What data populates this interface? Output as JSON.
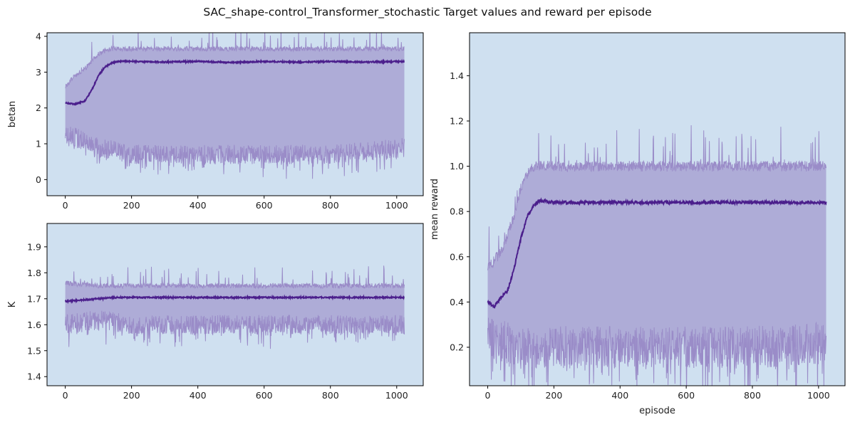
{
  "figure": {
    "title": "SAC_shape-control_Transformer_stochastic Target values and reward per episode",
    "background_color": "#cfe0f0",
    "band_color": "#a8a2d2",
    "raw_color": "#9a8cc8",
    "line_color": "#4b1f8c"
  },
  "chart_data": [
    {
      "type": "line",
      "id": "betan",
      "ylabel": "betan",
      "xlabel": "",
      "xlim": [
        -55,
        1080
      ],
      "ylim": [
        -0.45,
        4.1
      ],
      "xticks": [
        0,
        200,
        400,
        600,
        800,
        1000
      ],
      "yticks": [
        0,
        1,
        2,
        3,
        4
      ],
      "grid": false,
      "episodes": 1024,
      "series": [
        {
          "role": "mean",
          "x": [
            0,
            30,
            60,
            80,
            100,
            120,
            140,
            160,
            200,
            300,
            400,
            500,
            600,
            700,
            800,
            900,
            1024
          ],
          "y": [
            2.15,
            2.1,
            2.2,
            2.5,
            2.9,
            3.15,
            3.25,
            3.3,
            3.3,
            3.28,
            3.3,
            3.27,
            3.3,
            3.28,
            3.3,
            3.28,
            3.3
          ]
        },
        {
          "role": "upper",
          "x": [
            0,
            30,
            60,
            80,
            100,
            120,
            140,
            160,
            200,
            400,
            600,
            800,
            1024
          ],
          "y": [
            2.6,
            2.9,
            3.1,
            3.3,
            3.5,
            3.6,
            3.65,
            3.65,
            3.65,
            3.65,
            3.65,
            3.65,
            3.65
          ]
        },
        {
          "role": "lower",
          "x": [
            0,
            100,
            200,
            400,
            600,
            800,
            1024
          ],
          "y": [
            1.3,
            0.9,
            0.7,
            0.7,
            0.7,
            0.7,
            0.9
          ]
        }
      ]
    },
    {
      "type": "line",
      "id": "K",
      "ylabel": "K",
      "xlabel": "",
      "xlim": [
        -55,
        1080
      ],
      "ylim": [
        1.365,
        1.99
      ],
      "xticks": [
        0,
        200,
        400,
        600,
        800,
        1000
      ],
      "yticks": [
        1.4,
        1.5,
        1.6,
        1.7,
        1.8,
        1.9
      ],
      "grid": false,
      "episodes": 1024,
      "series": [
        {
          "role": "mean",
          "x": [
            0,
            50,
            100,
            150,
            200,
            400,
            600,
            800,
            1024
          ],
          "y": [
            1.69,
            1.695,
            1.7,
            1.705,
            1.705,
            1.705,
            1.705,
            1.705,
            1.705
          ]
        },
        {
          "role": "upper",
          "x": [
            0,
            100,
            200,
            400,
            600,
            800,
            1024
          ],
          "y": [
            1.76,
            1.75,
            1.75,
            1.75,
            1.75,
            1.75,
            1.75
          ]
        },
        {
          "role": "lower",
          "x": [
            0,
            100,
            200,
            400,
            600,
            800,
            1024
          ],
          "y": [
            1.6,
            1.62,
            1.6,
            1.6,
            1.6,
            1.6,
            1.6
          ]
        }
      ]
    },
    {
      "type": "line",
      "id": "mean-reward",
      "ylabel": "mean reward",
      "xlabel": "episode",
      "xlim": [
        -55,
        1080
      ],
      "ylim": [
        0.03,
        1.59
      ],
      "xticks": [
        0,
        200,
        400,
        600,
        800,
        1000
      ],
      "yticks": [
        0.2,
        0.4,
        0.6,
        0.8,
        1.0,
        1.2,
        1.4
      ],
      "ytick_labels": [
        "0.2",
        "0.4",
        "0.6",
        "0.8",
        "1.0",
        "1.2",
        "1.4"
      ],
      "grid": false,
      "episodes": 1024,
      "series": [
        {
          "role": "mean",
          "x": [
            0,
            20,
            40,
            60,
            80,
            100,
            120,
            140,
            160,
            200,
            300,
            400,
            500,
            600,
            700,
            800,
            900,
            1024
          ],
          "y": [
            0.4,
            0.38,
            0.42,
            0.45,
            0.55,
            0.68,
            0.78,
            0.83,
            0.85,
            0.84,
            0.84,
            0.84,
            0.84,
            0.84,
            0.84,
            0.84,
            0.84,
            0.84
          ]
        },
        {
          "role": "upper",
          "x": [
            0,
            40,
            80,
            100,
            120,
            140,
            160,
            200,
            400,
            600,
            800,
            1024
          ],
          "y": [
            0.55,
            0.62,
            0.78,
            0.9,
            0.97,
            1.0,
            1.0,
            1.0,
            1.0,
            1.0,
            1.0,
            1.0
          ]
        },
        {
          "role": "lower",
          "x": [
            0,
            60,
            100,
            200,
            400,
            600,
            800,
            1024
          ],
          "y": [
            0.25,
            0.22,
            0.2,
            0.2,
            0.2,
            0.2,
            0.2,
            0.22
          ]
        }
      ]
    }
  ]
}
